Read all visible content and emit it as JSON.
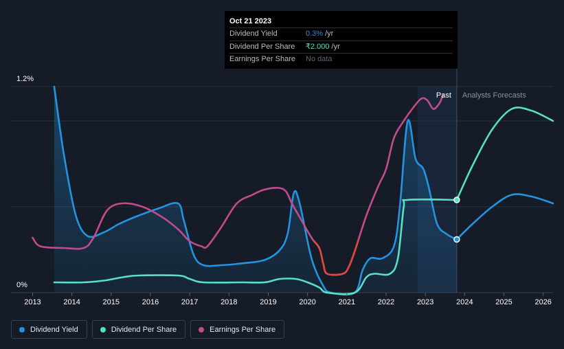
{
  "tooltip": {
    "date": "Oct 21 2023",
    "rows": [
      {
        "label": "Dividend Yield",
        "value": "0.3%",
        "unit": "/yr"
      },
      {
        "label": "Dividend Per Share",
        "value": "₹2.000",
        "unit": "/yr"
      },
      {
        "label": "Earnings Per Share",
        "value": "No data",
        "unit": ""
      }
    ]
  },
  "legend": [
    {
      "label": "Dividend Yield",
      "color": "#2394df"
    },
    {
      "label": "Dividend Per Share",
      "color": "#58e1c1"
    },
    {
      "label": "Earnings Per Share",
      "color": "#c24b8e"
    }
  ],
  "chart_data": {
    "type": "line",
    "title": "",
    "xlabel": "",
    "ylabel": "",
    "ylim": [
      0,
      1.2
    ],
    "xlim": [
      2012.45,
      2026.25
    ],
    "y_tick_labels": [
      "1.2%",
      "0%"
    ],
    "x_ticks": [
      2013,
      2014,
      2015,
      2016,
      2017,
      2018,
      2019,
      2020,
      2021,
      2022,
      2023,
      2024,
      2025,
      2026
    ],
    "region_labels": {
      "past": "Past",
      "forecast": "Analysts Forecasts"
    },
    "past_region": [
      2022.8,
      2023.8
    ],
    "series": [
      {
        "name": "Dividend Yield",
        "color": "#2394df",
        "area": true,
        "points": [
          [
            2013.55,
            1.2
          ],
          [
            2013.8,
            0.8
          ],
          [
            2014.1,
            0.45
          ],
          [
            2014.4,
            0.33
          ],
          [
            2014.8,
            0.35
          ],
          [
            2015.2,
            0.4
          ],
          [
            2015.6,
            0.44
          ],
          [
            2016.2,
            0.49
          ],
          [
            2016.7,
            0.52
          ],
          [
            2016.85,
            0.42
          ],
          [
            2017.1,
            0.22
          ],
          [
            2017.35,
            0.16
          ],
          [
            2017.8,
            0.16
          ],
          [
            2018.3,
            0.17
          ],
          [
            2018.9,
            0.19
          ],
          [
            2019.3,
            0.25
          ],
          [
            2019.5,
            0.35
          ],
          [
            2019.65,
            0.58
          ],
          [
            2019.8,
            0.52
          ],
          [
            2020.1,
            0.2
          ],
          [
            2020.4,
            0.04
          ],
          [
            2020.6,
            0.0
          ],
          [
            2021.2,
            0.0
          ],
          [
            2021.4,
            0.13
          ],
          [
            2021.6,
            0.2
          ],
          [
            2021.9,
            0.2
          ],
          [
            2022.2,
            0.27
          ],
          [
            2022.35,
            0.5
          ],
          [
            2022.55,
            1.0
          ],
          [
            2022.75,
            0.78
          ],
          [
            2022.95,
            0.72
          ],
          [
            2023.1,
            0.6
          ],
          [
            2023.3,
            0.4
          ],
          [
            2023.55,
            0.34
          ],
          [
            2023.8,
            0.31
          ]
        ]
      },
      {
        "name": "Dividend Yield Forecast",
        "color": "#2394df",
        "points": [
          [
            2023.8,
            0.31
          ],
          [
            2024.2,
            0.4
          ],
          [
            2024.7,
            0.5
          ],
          [
            2025.2,
            0.57
          ],
          [
            2025.7,
            0.56
          ],
          [
            2026.25,
            0.52
          ]
        ]
      },
      {
        "name": "Dividend Per Share",
        "color": "#58e1c1",
        "points": [
          [
            2013.55,
            0.06
          ],
          [
            2014.3,
            0.06
          ],
          [
            2014.8,
            0.07
          ],
          [
            2015.3,
            0.09
          ],
          [
            2015.7,
            0.1
          ],
          [
            2016.7,
            0.1
          ],
          [
            2017.0,
            0.08
          ],
          [
            2017.35,
            0.06
          ],
          [
            2018.3,
            0.06
          ],
          [
            2018.9,
            0.06
          ],
          [
            2019.3,
            0.08
          ],
          [
            2019.7,
            0.08
          ],
          [
            2020.0,
            0.06
          ],
          [
            2020.3,
            0.03
          ],
          [
            2020.5,
            0.0
          ],
          [
            2021.2,
            0.0
          ],
          [
            2021.5,
            0.09
          ],
          [
            2021.7,
            0.11
          ],
          [
            2022.1,
            0.11
          ],
          [
            2022.3,
            0.2
          ],
          [
            2022.45,
            0.5
          ],
          [
            2022.55,
            0.54
          ],
          [
            2023.8,
            0.54
          ]
        ]
      },
      {
        "name": "Dividend Per Share Forecast",
        "color": "#58e1c1",
        "points": [
          [
            2023.8,
            0.54
          ],
          [
            2024.2,
            0.74
          ],
          [
            2024.7,
            0.95
          ],
          [
            2025.2,
            1.07
          ],
          [
            2025.7,
            1.06
          ],
          [
            2026.25,
            1.0
          ]
        ]
      },
      {
        "name": "Earnings Per Share",
        "color": "#c24b8e",
        "points": [
          [
            2013.0,
            0.32
          ],
          [
            2013.2,
            0.27
          ],
          [
            2013.8,
            0.26
          ],
          [
            2014.3,
            0.26
          ],
          [
            2014.55,
            0.32
          ],
          [
            2014.9,
            0.48
          ],
          [
            2015.3,
            0.52
          ],
          [
            2015.8,
            0.5
          ],
          [
            2016.3,
            0.44
          ],
          [
            2016.7,
            0.37
          ],
          [
            2017.0,
            0.3
          ],
          [
            2017.3,
            0.27
          ],
          [
            2017.45,
            0.27
          ],
          [
            2017.8,
            0.38
          ],
          [
            2018.2,
            0.52
          ],
          [
            2018.6,
            0.57
          ],
          [
            2018.9,
            0.6
          ],
          [
            2019.25,
            0.61
          ],
          [
            2019.45,
            0.59
          ],
          [
            2019.6,
            0.52
          ],
          [
            2019.8,
            0.44
          ],
          [
            2020.1,
            0.32
          ],
          [
            2020.3,
            0.26
          ],
          [
            2020.4,
            0.17
          ],
          [
            2020.5,
            0.11
          ],
          [
            2020.9,
            0.11
          ],
          [
            2021.05,
            0.15
          ],
          [
            2021.2,
            0.24
          ],
          [
            2021.5,
            0.45
          ],
          [
            2021.8,
            0.62
          ],
          [
            2022.0,
            0.72
          ],
          [
            2022.2,
            0.9
          ],
          [
            2022.45,
            1.0
          ],
          [
            2022.7,
            1.08
          ],
          [
            2022.9,
            1.13
          ],
          [
            2023.05,
            1.12
          ],
          [
            2023.2,
            1.07
          ],
          [
            2023.35,
            1.1
          ],
          [
            2023.45,
            1.15
          ]
        ]
      }
    ],
    "ttm_dots": [
      {
        "series": "Dividend Per Share",
        "x": 2023.8,
        "y": 0.54
      },
      {
        "series": "Dividend Yield",
        "x": 2023.8,
        "y": 0.31
      }
    ],
    "negative_segment_color": "#e0473f"
  }
}
